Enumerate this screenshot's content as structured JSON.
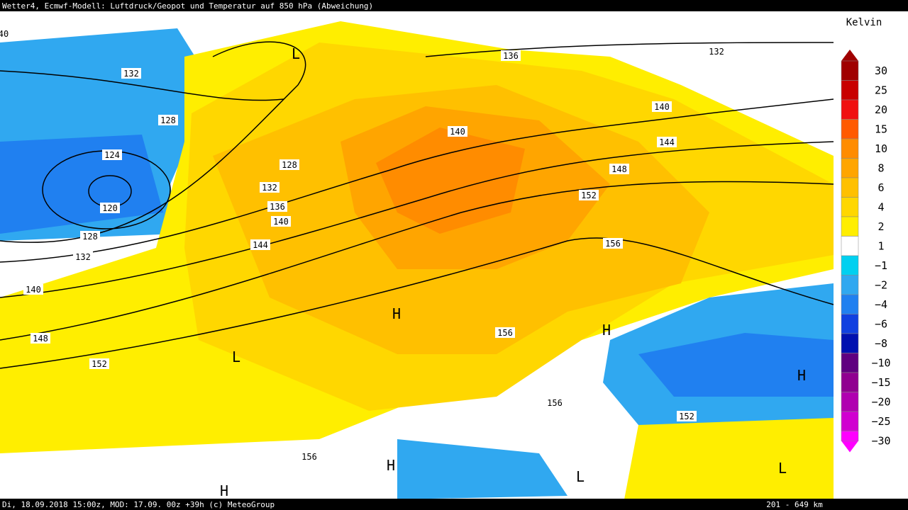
{
  "header": {
    "title": "Wetter4, Ecmwf-Modell: Luftdruck/Geopot und Temperatur auf 850 hPa (Abweichung)"
  },
  "footer": {
    "info": "Di, 18.09.2018 15:00z, MOD: 17.09. 00z +39h (c) MeteoGroup",
    "scale": "201 - 649 km"
  },
  "legend": {
    "unit": "Kelvin",
    "items": [
      {
        "label": "30",
        "color": "#a00000"
      },
      {
        "label": "25",
        "color": "#c80000"
      },
      {
        "label": "20",
        "color": "#f01010"
      },
      {
        "label": "15",
        "color": "#ff5a00"
      },
      {
        "label": "10",
        "color": "#ff8c00"
      },
      {
        "label": "8",
        "color": "#ffa500"
      },
      {
        "label": "6",
        "color": "#ffc000"
      },
      {
        "label": "4",
        "color": "#ffd700"
      },
      {
        "label": "2",
        "color": "#ffee00"
      },
      {
        "label": "1",
        "color": "#ffffff"
      },
      {
        "label": "−1",
        "color": "#00d0f0"
      },
      {
        "label": "−2",
        "color": "#30a8f0"
      },
      {
        "label": "−4",
        "color": "#2080f0"
      },
      {
        "label": "−6",
        "color": "#1040e0"
      },
      {
        "label": "−8",
        "color": "#0010b0"
      },
      {
        "label": "−10",
        "color": "#600080"
      },
      {
        "label": "−15",
        "color": "#900090"
      },
      {
        "label": "−20",
        "color": "#b000b0"
      },
      {
        "label": "−25",
        "color": "#d000d0"
      },
      {
        "label": "−30",
        "color": "#ff00ff"
      }
    ]
  },
  "contour_labels": [
    "40",
    "132",
    "128",
    "124",
    "120",
    "128",
    "132",
    "136",
    "140",
    "144",
    "128",
    "132",
    "140",
    "148",
    "152",
    "136",
    "132",
    "140",
    "140",
    "144",
    "148",
    "152",
    "156",
    "156",
    "156",
    "152",
    "156"
  ],
  "pressure_centers": [
    "L",
    "L",
    "H",
    "H",
    "H",
    "H",
    "L",
    "L",
    "H"
  ]
}
